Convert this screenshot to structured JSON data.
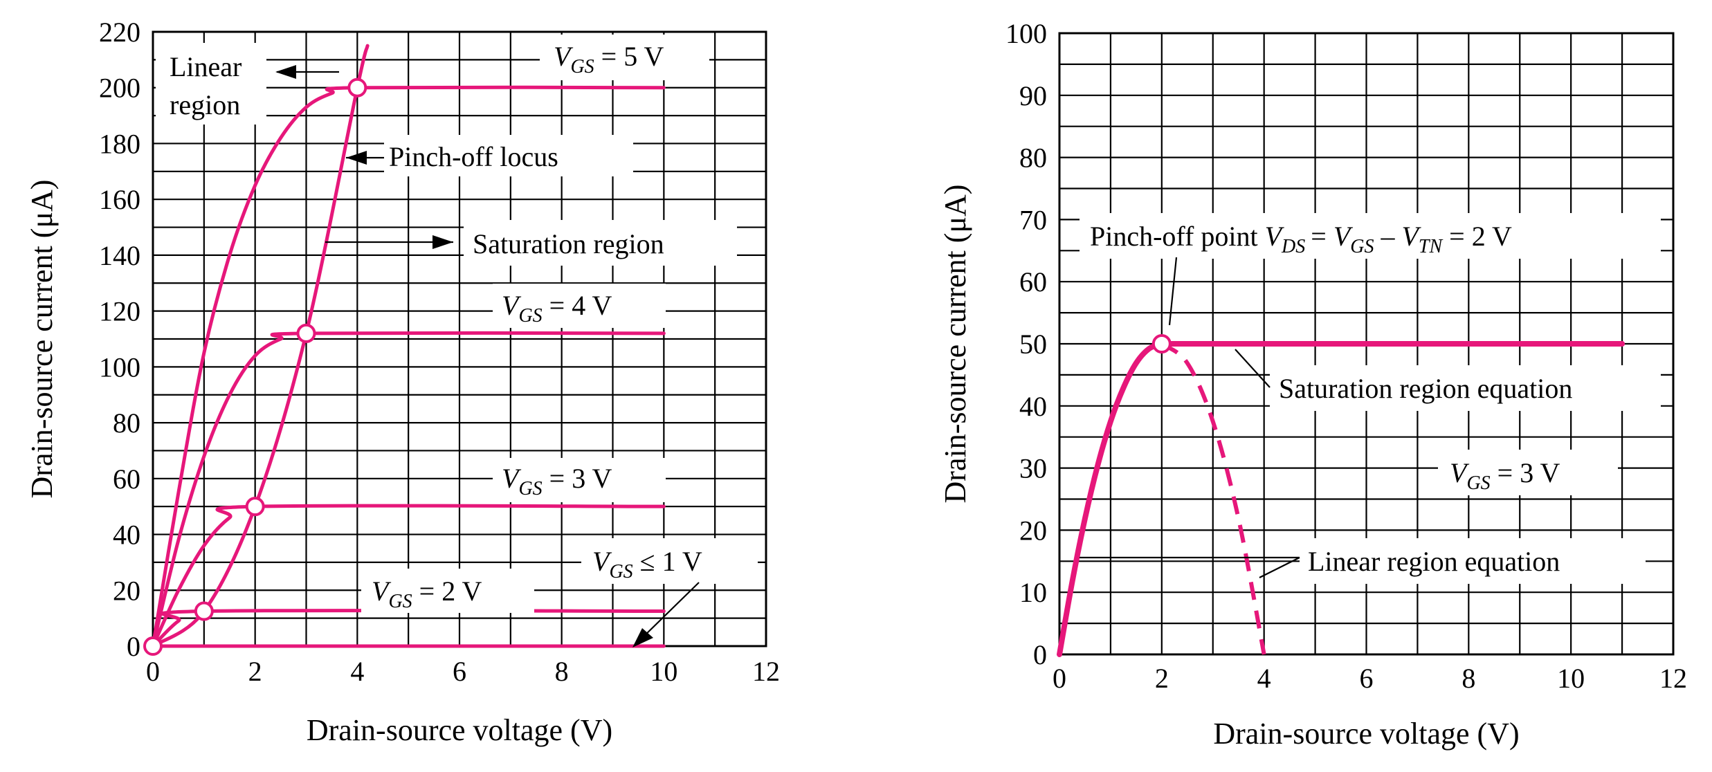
{
  "colors": {
    "curve": "#e6177a",
    "grid": "#000000"
  },
  "chart_data": [
    {
      "type": "line",
      "title": "",
      "xlabel": "Drain-source voltage (V)",
      "ylabel": "Drain-source current (μA)",
      "xlim": [
        0,
        12
      ],
      "ylim": [
        0,
        220
      ],
      "xticks": [
        0,
        2,
        4,
        6,
        8,
        10,
        12
      ],
      "yticks": [
        0,
        20,
        40,
        60,
        80,
        100,
        120,
        140,
        160,
        180,
        200,
        220
      ],
      "grid": true,
      "series": [
        {
          "label": "V_GS = 5 V",
          "points": [
            [
              0,
              0
            ],
            [
              0.5,
              55
            ],
            [
              1,
              105
            ],
            [
              1.5,
              140
            ],
            [
              2,
              165
            ],
            [
              2.5,
              182
            ],
            [
              3,
              193
            ],
            [
              3.5,
              198
            ],
            [
              4,
              200
            ],
            [
              10,
              200
            ]
          ]
        },
        {
          "label": "V_GS = 4 V",
          "points": [
            [
              0,
              0
            ],
            [
              0.5,
              38
            ],
            [
              1,
              68
            ],
            [
              1.5,
              90
            ],
            [
              2,
              104
            ],
            [
              2.5,
              110
            ],
            [
              3,
              112
            ],
            [
              10,
              112
            ]
          ]
        },
        {
          "label": "V_GS = 3 V",
          "points": [
            [
              0,
              0
            ],
            [
              0.5,
              20
            ],
            [
              1,
              36
            ],
            [
              1.5,
              46
            ],
            [
              2,
              50
            ],
            [
              10,
              50
            ]
          ]
        },
        {
          "label": "V_GS = 2 V",
          "points": [
            [
              0,
              0
            ],
            [
              0.5,
              9
            ],
            [
              1,
              12.5
            ],
            [
              10,
              12.5
            ]
          ]
        },
        {
          "label": "V_GS ≤ 1 V",
          "points": [
            [
              0,
              0
            ],
            [
              10,
              0
            ]
          ]
        },
        {
          "label": "Pinch-off locus",
          "points": [
            [
              0,
              0
            ],
            [
              1,
              12.5
            ],
            [
              2,
              50
            ],
            [
              3,
              112
            ],
            [
              4,
              200
            ],
            [
              4.2,
              215
            ]
          ]
        }
      ],
      "markers": [
        [
          0,
          0
        ],
        [
          1,
          12.5
        ],
        [
          2,
          50
        ],
        [
          3,
          112
        ],
        [
          4,
          200
        ]
      ],
      "annotations": {
        "linear_1": "Linear",
        "linear_2": "region",
        "pinch": "Pinch-off locus",
        "saturation": "Saturation region",
        "vgs5_pre": "V",
        "vgs5_sub": "GS",
        "vgs5_post": " = 5 V",
        "vgs4_pre": "V",
        "vgs4_sub": "GS",
        "vgs4_post": " = 4 V",
        "vgs3_pre": "V",
        "vgs3_sub": "GS",
        "vgs3_post": " = 3 V",
        "vgs2_pre": "V",
        "vgs2_sub": "GS",
        "vgs2_post": " = 2 V",
        "vgs1_pre": "V",
        "vgs1_sub": "GS",
        "vgs1_post": " ≤ 1 V"
      }
    },
    {
      "type": "line",
      "title": "",
      "xlabel": "Drain-source voltage (V)",
      "ylabel": "Drain-source current (μA)",
      "xlim": [
        0,
        12
      ],
      "ylim": [
        0,
        100
      ],
      "xticks": [
        0,
        2,
        4,
        6,
        8,
        10,
        12
      ],
      "yticks": [
        0,
        10,
        20,
        30,
        40,
        50,
        60,
        70,
        80,
        90,
        100
      ],
      "grid": true,
      "series": [
        {
          "label": "Linear region equation (solid)",
          "points": [
            [
              0,
              0
            ],
            [
              0.25,
              11.7
            ],
            [
              0.5,
              21.9
            ],
            [
              0.75,
              30.5
            ],
            [
              1,
              37.5
            ],
            [
              1.25,
              42.9
            ],
            [
              1.5,
              46.9
            ],
            [
              1.75,
              49.2
            ],
            [
              2,
              50
            ]
          ]
        },
        {
          "label": "Saturation region equation",
          "points": [
            [
              2,
              50
            ],
            [
              11,
              50
            ]
          ]
        },
        {
          "label": "Linear region equation (dashed)",
          "points": [
            [
              2,
              50
            ],
            [
              2.5,
              46.9
            ],
            [
              3,
              37.5
            ],
            [
              3.5,
              21.9
            ],
            [
              4,
              0
            ]
          ]
        }
      ],
      "markers": [
        [
          2,
          50
        ]
      ],
      "annotations": {
        "pinch_pre": "Pinch-off point ",
        "pinch_eq": "= ",
        "pinch_minus": " – ",
        "pinch_post": " = 2 V",
        "v": "V",
        "ds": "DS",
        "gs": "GS",
        "tn": "TN",
        "saturation_eq": "Saturation region equation",
        "linear_eq": "Linear region equation",
        "vgs3_pre": "V",
        "vgs3_sub": "GS",
        "vgs3_post": " = 3 V"
      }
    }
  ]
}
